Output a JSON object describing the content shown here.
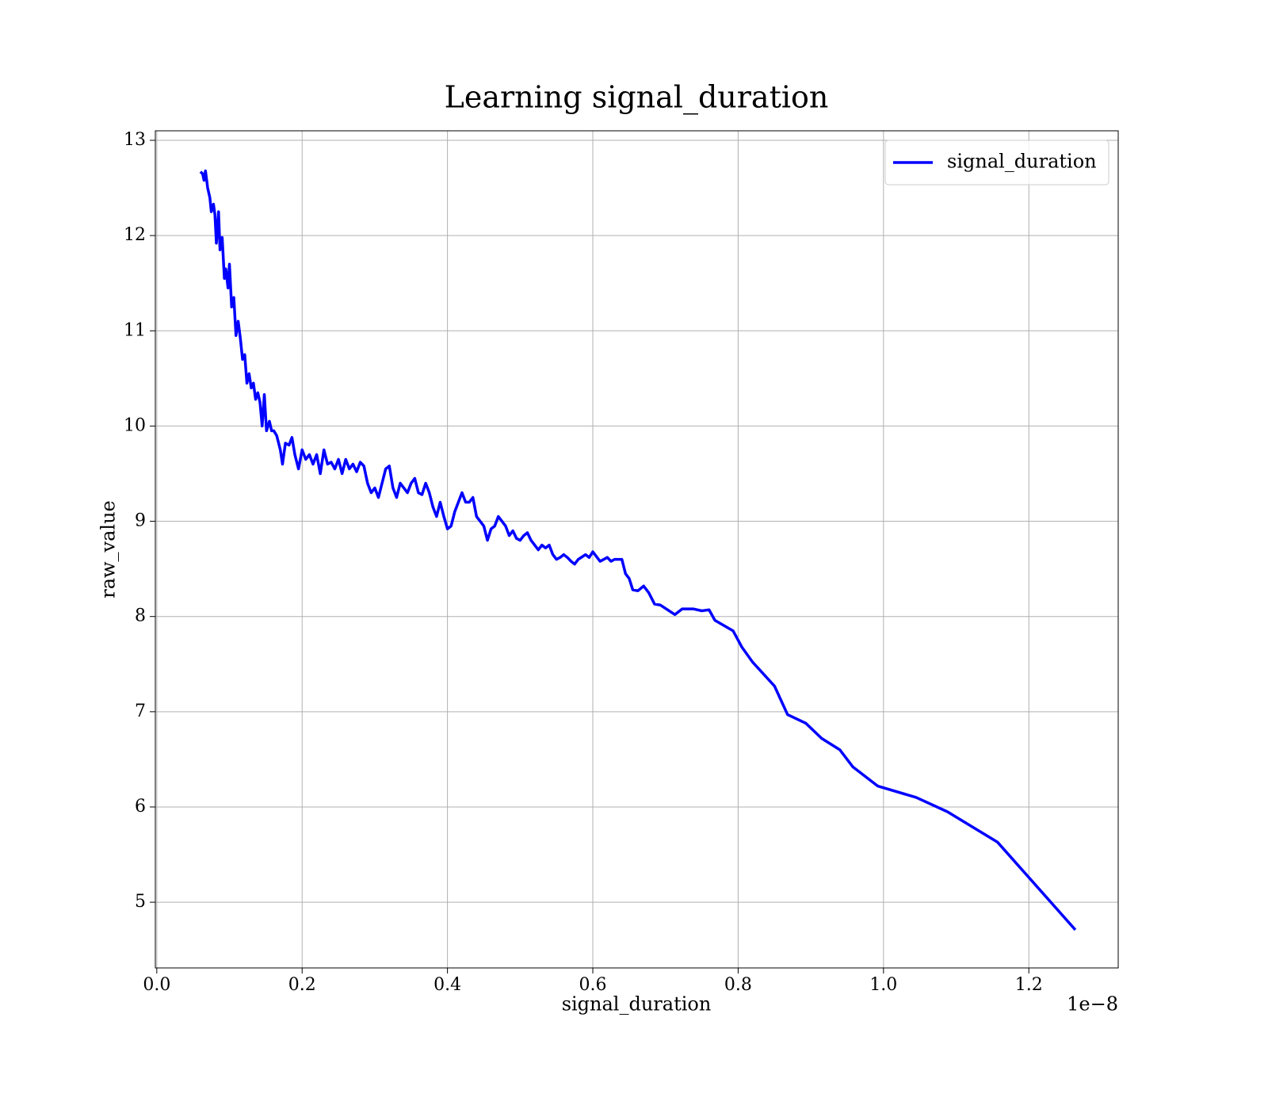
{
  "chart_data": {
    "type": "line",
    "title": "Learning signal_duration",
    "xlabel": "signal_duration",
    "ylabel": "raw_value",
    "x_offset_label": "1e−8",
    "xlim": [
      -0.002,
      1.323
    ],
    "ylim": [
      4.31,
      13.1
    ],
    "xticks": [
      {
        "value": 0,
        "label": "0.0"
      },
      0.2,
      0.4,
      0.6,
      0.8,
      {
        "value": 1,
        "label": "1.0"
      },
      1.2
    ],
    "yticks": [
      5,
      6,
      7,
      8,
      9,
      10,
      11,
      12,
      13
    ],
    "grid": true,
    "legend": "upper right",
    "x": [
      0.06,
      0.063,
      0.065,
      0.067,
      0.07,
      0.073,
      0.075,
      0.078,
      0.08,
      0.082,
      0.085,
      0.087,
      0.09,
      0.093,
      0.095,
      0.098,
      0.1,
      0.103,
      0.106,
      0.109,
      0.112,
      0.115,
      0.118,
      0.121,
      0.124,
      0.127,
      0.13,
      0.133,
      0.136,
      0.139,
      0.142,
      0.145,
      0.148,
      0.151,
      0.155,
      0.158,
      0.161,
      0.165,
      0.17,
      0.173,
      0.177,
      0.182,
      0.186,
      0.19,
      0.195,
      0.2,
      0.205,
      0.21,
      0.215,
      0.22,
      0.225,
      0.23,
      0.235,
      0.24,
      0.245,
      0.25,
      0.255,
      0.26,
      0.265,
      0.27,
      0.275,
      0.28,
      0.285,
      0.29,
      0.295,
      0.3,
      0.305,
      0.31,
      0.315,
      0.32,
      0.325,
      0.33,
      0.335,
      0.34,
      0.345,
      0.35,
      0.355,
      0.36,
      0.365,
      0.37,
      0.375,
      0.38,
      0.385,
      0.39,
      0.395,
      0.4,
      0.405,
      0.41,
      0.415,
      0.42,
      0.425,
      0.43,
      0.435,
      0.44,
      0.445,
      0.45,
      0.455,
      0.46,
      0.465,
      0.47,
      0.475,
      0.48,
      0.485,
      0.49,
      0.495,
      0.5,
      0.505,
      0.51,
      0.515,
      0.52,
      0.525,
      0.53,
      0.535,
      0.54,
      0.545,
      0.55,
      0.555,
      0.56,
      0.565,
      0.57,
      0.575,
      0.58,
      0.59,
      0.595,
      0.6,
      0.61,
      0.62,
      0.625,
      0.63,
      0.64,
      0.645,
      0.65,
      0.655,
      0.662,
      0.67,
      0.677,
      0.685,
      0.693,
      0.713,
      0.723,
      0.738,
      0.75,
      0.76,
      0.768,
      0.793,
      0.805,
      0.82,
      0.85,
      0.868,
      0.893,
      0.915,
      0.94,
      0.958,
      0.992,
      1.045,
      1.088,
      1.157,
      1.264
    ],
    "series": [
      {
        "name": "signal_duration",
        "color": "#0000ff",
        "values": [
          12.67,
          12.65,
          12.58,
          12.68,
          12.5,
          12.4,
          12.25,
          12.33,
          12.22,
          11.92,
          12.25,
          11.85,
          11.98,
          11.55,
          11.65,
          11.45,
          11.7,
          11.25,
          11.35,
          10.95,
          11.1,
          10.92,
          10.7,
          10.75,
          10.45,
          10.55,
          10.4,
          10.45,
          10.28,
          10.35,
          10.25,
          10.0,
          10.33,
          9.95,
          10.05,
          9.95,
          9.95,
          9.9,
          9.75,
          9.6,
          9.82,
          9.8,
          9.88,
          9.7,
          9.55,
          9.75,
          9.65,
          9.7,
          9.6,
          9.7,
          9.5,
          9.75,
          9.6,
          9.62,
          9.55,
          9.65,
          9.5,
          9.65,
          9.55,
          9.6,
          9.52,
          9.62,
          9.58,
          9.4,
          9.3,
          9.35,
          9.25,
          9.4,
          9.55,
          9.58,
          9.35,
          9.25,
          9.4,
          9.35,
          9.3,
          9.4,
          9.45,
          9.3,
          9.28,
          9.4,
          9.3,
          9.15,
          9.05,
          9.2,
          9.05,
          8.92,
          8.95,
          9.1,
          9.2,
          9.3,
          9.2,
          9.2,
          9.25,
          9.05,
          9.0,
          8.95,
          8.8,
          8.92,
          8.95,
          9.05,
          9.0,
          8.95,
          8.85,
          8.9,
          8.82,
          8.8,
          8.85,
          8.88,
          8.8,
          8.75,
          8.7,
          8.75,
          8.72,
          8.75,
          8.65,
          8.6,
          8.62,
          8.65,
          8.62,
          8.58,
          8.55,
          8.6,
          8.65,
          8.62,
          8.68,
          8.58,
          8.62,
          8.58,
          8.6,
          8.6,
          8.45,
          8.4,
          8.28,
          8.27,
          8.32,
          8.25,
          8.13,
          8.12,
          8.02,
          8.08,
          8.08,
          8.06,
          8.07,
          7.96,
          7.85,
          7.68,
          7.52,
          7.27,
          6.97,
          6.88,
          6.72,
          6.6,
          6.42,
          6.22,
          6.1,
          5.95,
          5.63,
          4.71
        ]
      }
    ]
  }
}
